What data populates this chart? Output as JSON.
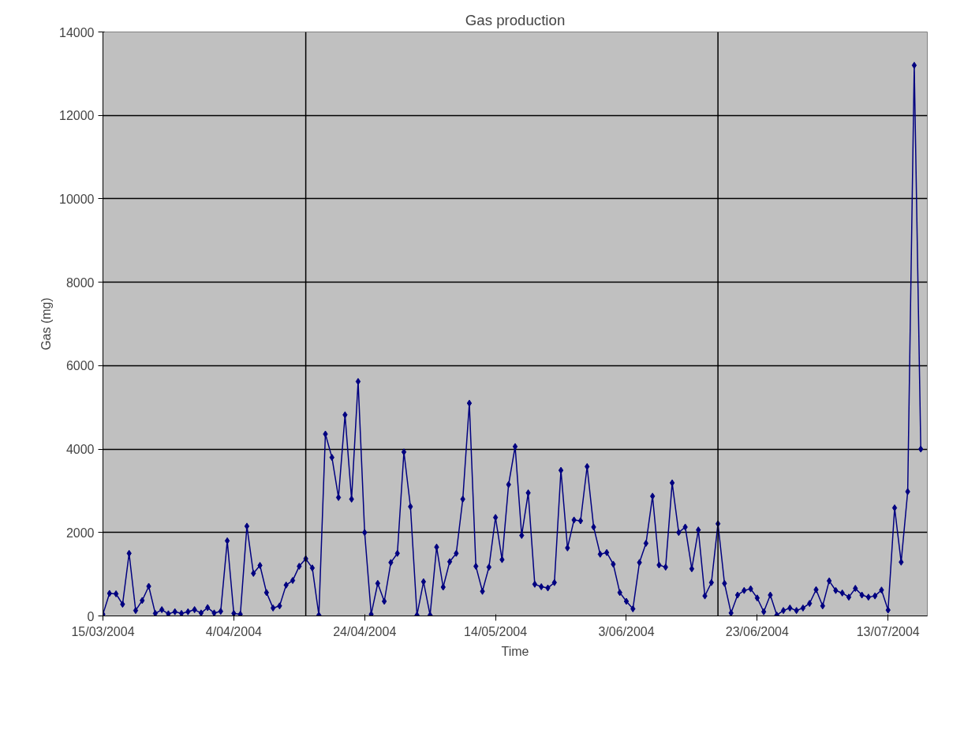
{
  "chart_data": {
    "type": "line",
    "title": "Gas production",
    "xlabel": "Time",
    "ylabel": "Gas (mg)",
    "x": [
      "2004-03-15",
      "2004-03-16",
      "2004-03-17",
      "2004-03-18",
      "2004-03-19",
      "2004-03-20",
      "2004-03-21",
      "2004-03-22",
      "2004-03-23",
      "2004-03-24",
      "2004-03-25",
      "2004-03-26",
      "2004-03-27",
      "2004-03-28",
      "2004-03-29",
      "2004-03-30",
      "2004-03-31",
      "2004-04-01",
      "2004-04-02",
      "2004-04-03",
      "2004-04-04",
      "2004-04-05",
      "2004-04-06",
      "2004-04-07",
      "2004-04-08",
      "2004-04-09",
      "2004-04-10",
      "2004-04-11",
      "2004-04-12",
      "2004-04-13",
      "2004-04-14",
      "2004-04-15",
      "2004-04-16",
      "2004-04-17",
      "2004-04-18",
      "2004-04-19",
      "2004-04-20",
      "2004-04-21",
      "2004-04-22",
      "2004-04-23",
      "2004-04-24",
      "2004-04-25",
      "2004-04-26",
      "2004-04-27",
      "2004-04-28",
      "2004-04-29",
      "2004-04-30",
      "2004-05-01",
      "2004-05-02",
      "2004-05-03",
      "2004-05-04",
      "2004-05-05",
      "2004-05-06",
      "2004-05-07",
      "2004-05-08",
      "2004-05-09",
      "2004-05-10",
      "2004-05-11",
      "2004-05-12",
      "2004-05-13",
      "2004-05-14",
      "2004-05-15",
      "2004-05-16",
      "2004-05-17",
      "2004-05-18",
      "2004-05-19",
      "2004-05-20",
      "2004-05-21",
      "2004-05-22",
      "2004-05-23",
      "2004-05-24",
      "2004-05-25",
      "2004-05-26",
      "2004-05-27",
      "2004-05-28",
      "2004-05-29",
      "2004-05-30",
      "2004-05-31",
      "2004-06-01",
      "2004-06-02",
      "2004-06-03",
      "2004-06-04",
      "2004-06-05",
      "2004-06-06",
      "2004-06-07",
      "2004-06-08",
      "2004-06-09",
      "2004-06-10",
      "2004-06-11",
      "2004-06-12",
      "2004-06-13",
      "2004-06-14",
      "2004-06-15",
      "2004-06-16",
      "2004-06-17",
      "2004-06-18",
      "2004-06-19",
      "2004-06-20",
      "2004-06-21",
      "2004-06-22",
      "2004-06-23",
      "2004-06-24",
      "2004-06-25",
      "2004-06-26",
      "2004-06-27",
      "2004-06-28",
      "2004-06-29",
      "2004-06-30",
      "2004-07-01",
      "2004-07-02",
      "2004-07-03",
      "2004-07-04",
      "2004-07-05",
      "2004-07-06",
      "2004-07-07",
      "2004-07-08",
      "2004-07-09",
      "2004-07-10",
      "2004-07-11",
      "2004-07-12",
      "2004-07-13",
      "2004-07-14",
      "2004-07-15",
      "2004-07-16",
      "2004-07-17",
      "2004-07-18"
    ],
    "series": [
      {
        "color": "#000080",
        "values": [
          40,
          540,
          530,
          280,
          1500,
          130,
          370,
          710,
          60,
          150,
          50,
          100,
          60,
          100,
          150,
          70,
          200,
          70,
          110,
          1800,
          60,
          40,
          2150,
          1020,
          1210,
          560,
          190,
          240,
          740,
          850,
          1190,
          1370,
          1150,
          20,
          4360,
          3800,
          2840,
          4820,
          2800,
          5620,
          2000,
          40,
          780,
          350,
          1280,
          1500,
          3930,
          2620,
          20,
          820,
          20,
          1650,
          690,
          1300,
          1500,
          2800,
          5100,
          1190,
          590,
          1170,
          2360,
          1350,
          3150,
          4060,
          1930,
          2950,
          760,
          700,
          670,
          800,
          3490,
          1630,
          2300,
          2280,
          3580,
          2130,
          1480,
          1520,
          1240,
          560,
          350,
          170,
          1280,
          1740,
          2870,
          1220,
          1170,
          3190,
          2000,
          2130,
          1130,
          2060,
          480,
          800,
          2210,
          780,
          70,
          500,
          610,
          650,
          430,
          100,
          500,
          20,
          130,
          190,
          130,
          190,
          300,
          630,
          240,
          840,
          610,
          550,
          450,
          660,
          500,
          450,
          480,
          620,
          140,
          2590,
          1290,
          2980,
          13200,
          4000
        ]
      }
    ],
    "xlim": [
      "2004-03-15",
      "2004-07-19"
    ],
    "xticks": [
      {
        "value": "2004-03-15",
        "label": "15/03/2004"
      },
      {
        "value": "2004-04-04",
        "label": "4/04/2004"
      },
      {
        "value": "2004-04-24",
        "label": "24/04/2004"
      },
      {
        "value": "2004-05-14",
        "label": "14/05/2004"
      },
      {
        "value": "2004-06-03",
        "label": "3/06/2004"
      },
      {
        "value": "2004-06-23",
        "label": "23/06/2004"
      },
      {
        "value": "2004-07-13",
        "label": "13/07/2004"
      }
    ],
    "ylim": [
      0,
      14000
    ],
    "yticks": [
      0,
      2000,
      4000,
      6000,
      8000,
      10000,
      12000,
      14000
    ],
    "ref_lines": [
      {
        "axis": "x",
        "value": "2004-04-15",
        "color": "#000000"
      },
      {
        "axis": "x",
        "value": "2004-06-17",
        "color": "#000000"
      }
    ],
    "grid": "y",
    "marker": "diamond",
    "line_style": "solid"
  }
}
